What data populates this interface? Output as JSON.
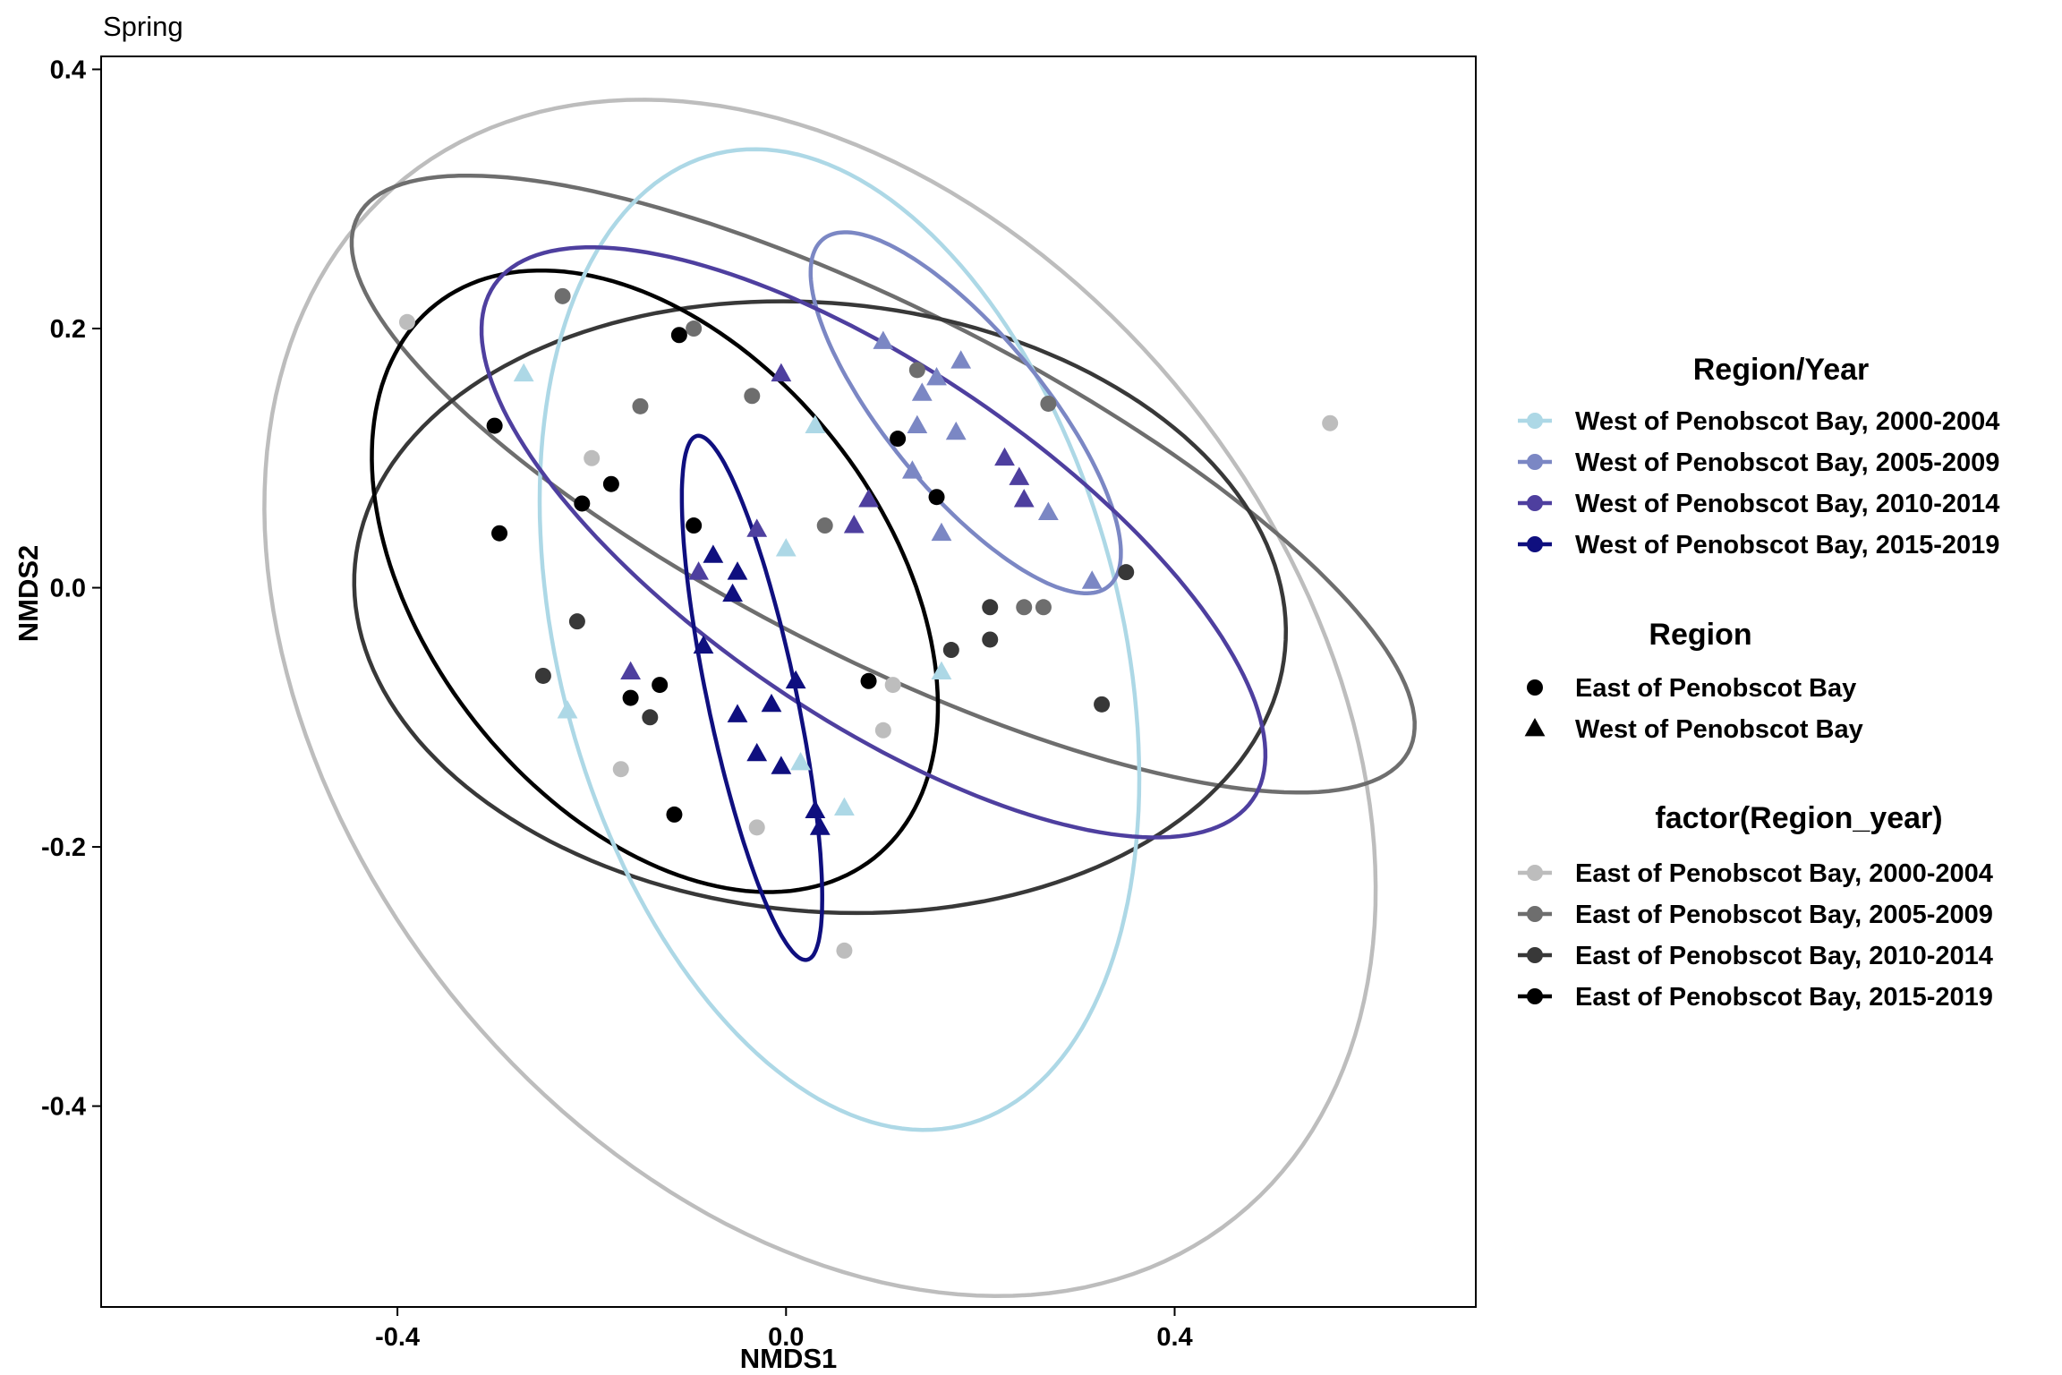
{
  "chart_data": {
    "type": "scatter",
    "title": "Spring",
    "xlabel": "NMDS1",
    "ylabel": "NMDS2",
    "xlim": [
      -0.705,
      0.71
    ],
    "ylim": [
      -0.555,
      0.41
    ],
    "xticks": [
      -0.4,
      0.0,
      0.4
    ],
    "xtick_labels": [
      "-0.4",
      "0.0",
      "0.4"
    ],
    "yticks": [
      -0.4,
      -0.2,
      0.0,
      0.2,
      0.4
    ],
    "ytick_labels": [
      "-0.4",
      "-0.2",
      "0.0",
      "0.2",
      "0.4"
    ],
    "grid": false,
    "legend_position": "right",
    "legends": [
      {
        "title": "Region/Year",
        "entries": [
          {
            "label": "West of Penobscot Bay, 2000-2004",
            "color": "#add8e6"
          },
          {
            "label": "West of Penobscot Bay, 2005-2009",
            "color": "#7b87c4"
          },
          {
            "label": "West of Penobscot Bay, 2010-2014",
            "color": "#4e3f9f"
          },
          {
            "label": "West of Penobscot Bay, 2015-2019",
            "color": "#0f0f7f"
          }
        ]
      },
      {
        "title": "Region",
        "entries": [
          {
            "label": "East of Penobscot Bay",
            "shape": "circle"
          },
          {
            "label": "West of Penobscot Bay",
            "shape": "triangle"
          }
        ]
      },
      {
        "title": "factor(Region_year)",
        "entries": [
          {
            "label": "East of Penobscot Bay, 2000-2004",
            "color": "#bdbdbd"
          },
          {
            "label": "East of Penobscot Bay, 2005-2009",
            "color": "#6e6e6e"
          },
          {
            "label": "East of Penobscot Bay, 2010-2014",
            "color": "#383838"
          },
          {
            "label": "East of Penobscot Bay, 2015-2019",
            "color": "#000000"
          }
        ]
      }
    ],
    "ellipses": [
      {
        "name": "East of Penobscot Bay, 2000-2004",
        "color": "#bdbdbd",
        "center": [
          0.035,
          -0.085
        ],
        "rx": 0.61,
        "ry": 0.41,
        "angle": -28
      },
      {
        "name": "East of Penobscot Bay, 2005-2009",
        "color": "#6e6e6e",
        "center": [
          0.1,
          0.08
        ],
        "rx": 0.58,
        "ry": 0.14,
        "angle": -20
      },
      {
        "name": "East of Penobscot Bay, 2010-2014",
        "color": "#383838",
        "center": [
          0.035,
          -0.015
        ],
        "rx": 0.48,
        "ry": 0.235,
        "angle": -3
      },
      {
        "name": "East of Penobscot Bay, 2015-2019",
        "color": "#000000",
        "center": [
          -0.135,
          0.005
        ],
        "rx": 0.32,
        "ry": 0.2,
        "angle": -32
      },
      {
        "name": "West of Penobscot Bay, 2000-2004",
        "color": "#add8e6",
        "center": [
          0.055,
          -0.04
        ],
        "rx": 0.4,
        "ry": 0.28,
        "angle": -63
      },
      {
        "name": "West of Penobscot Bay, 2005-2009",
        "color": "#7b87c4",
        "center": [
          0.185,
          0.135
        ],
        "rx": 0.2,
        "ry": 0.07,
        "angle": -40
      },
      {
        "name": "West of Penobscot Bay, 2010-2014",
        "color": "#4e3f9f",
        "center": [
          0.09,
          0.035
        ],
        "rx": 0.44,
        "ry": 0.145,
        "angle": -25
      },
      {
        "name": "West of Penobscot Bay, 2015-2019",
        "color": "#0f0f7f",
        "center": [
          -0.035,
          -0.085
        ],
        "rx": 0.21,
        "ry": 0.045,
        "angle": -74
      }
    ],
    "series": [
      {
        "name": "East of Penobscot Bay, 2000-2004",
        "color": "#bdbdbd",
        "shape": "circle",
        "points": [
          [
            -0.39,
            0.205
          ],
          [
            -0.2,
            0.1
          ],
          [
            -0.17,
            -0.14
          ],
          [
            -0.03,
            -0.185
          ],
          [
            0.06,
            -0.28
          ],
          [
            0.1,
            -0.11
          ],
          [
            0.11,
            -0.075
          ],
          [
            0.56,
            0.127
          ]
        ]
      },
      {
        "name": "East of Penobscot Bay, 2005-2009",
        "color": "#6e6e6e",
        "shape": "circle",
        "points": [
          [
            -0.23,
            0.225
          ],
          [
            -0.15,
            0.14
          ],
          [
            -0.095,
            0.2
          ],
          [
            -0.035,
            0.148
          ],
          [
            0.04,
            0.048
          ],
          [
            0.135,
            0.168
          ],
          [
            0.245,
            -0.015
          ],
          [
            0.265,
            -0.015
          ],
          [
            0.27,
            0.142
          ]
        ]
      },
      {
        "name": "East of Penobscot Bay, 2010-2014",
        "color": "#383838",
        "shape": "circle",
        "points": [
          [
            -0.25,
            -0.068
          ],
          [
            -0.215,
            -0.026
          ],
          [
            -0.14,
            -0.1
          ],
          [
            0.17,
            -0.048
          ],
          [
            0.21,
            -0.015
          ],
          [
            0.21,
            -0.04
          ],
          [
            0.325,
            -0.09
          ],
          [
            0.35,
            0.012
          ]
        ]
      },
      {
        "name": "East of Penobscot Bay, 2015-2019",
        "color": "#000000",
        "shape": "circle",
        "points": [
          [
            -0.3,
            0.125
          ],
          [
            -0.295,
            0.042
          ],
          [
            -0.21,
            0.065
          ],
          [
            -0.18,
            0.08
          ],
          [
            -0.16,
            -0.085
          ],
          [
            -0.13,
            -0.075
          ],
          [
            -0.115,
            -0.175
          ],
          [
            -0.11,
            0.195
          ],
          [
            -0.095,
            0.048
          ],
          [
            0.085,
            -0.072
          ],
          [
            0.115,
            0.115
          ],
          [
            0.155,
            0.07
          ]
        ]
      },
      {
        "name": "West of Penobscot Bay, 2000-2004",
        "color": "#add8e6",
        "shape": "triangle",
        "points": [
          [
            -0.27,
            0.165
          ],
          [
            -0.225,
            -0.095
          ],
          [
            0.0,
            0.03
          ],
          [
            0.015,
            -0.135
          ],
          [
            0.03,
            0.125
          ],
          [
            0.06,
            -0.17
          ],
          [
            0.16,
            -0.065
          ]
        ]
      },
      {
        "name": "West of Penobscot Bay, 2005-2009",
        "color": "#7b87c4",
        "shape": "triangle",
        "points": [
          [
            0.1,
            0.19
          ],
          [
            0.13,
            0.09
          ],
          [
            0.135,
            0.125
          ],
          [
            0.14,
            0.15
          ],
          [
            0.155,
            0.162
          ],
          [
            0.16,
            0.042
          ],
          [
            0.175,
            0.12
          ],
          [
            0.18,
            0.175
          ],
          [
            0.27,
            0.058
          ],
          [
            0.315,
            0.005
          ]
        ]
      },
      {
        "name": "West of Penobscot Bay, 2010-2014",
        "color": "#4e3f9f",
        "shape": "triangle",
        "points": [
          [
            -0.16,
            -0.065
          ],
          [
            -0.09,
            0.012
          ],
          [
            -0.03,
            0.045
          ],
          [
            -0.005,
            0.165
          ],
          [
            0.07,
            0.048
          ],
          [
            0.085,
            0.068
          ],
          [
            0.225,
            0.1
          ],
          [
            0.24,
            0.085
          ],
          [
            0.245,
            0.068
          ]
        ]
      },
      {
        "name": "West of Penobscot Bay, 2015-2019",
        "color": "#0f0f7f",
        "shape": "triangle",
        "points": [
          [
            -0.085,
            -0.045
          ],
          [
            -0.075,
            0.025
          ],
          [
            -0.055,
            -0.005
          ],
          [
            -0.05,
            0.012
          ],
          [
            -0.05,
            -0.098
          ],
          [
            -0.03,
            -0.128
          ],
          [
            -0.015,
            -0.09
          ],
          [
            -0.005,
            -0.138
          ],
          [
            0.01,
            -0.072
          ],
          [
            0.03,
            -0.172
          ],
          [
            0.035,
            -0.185
          ]
        ]
      }
    ]
  }
}
